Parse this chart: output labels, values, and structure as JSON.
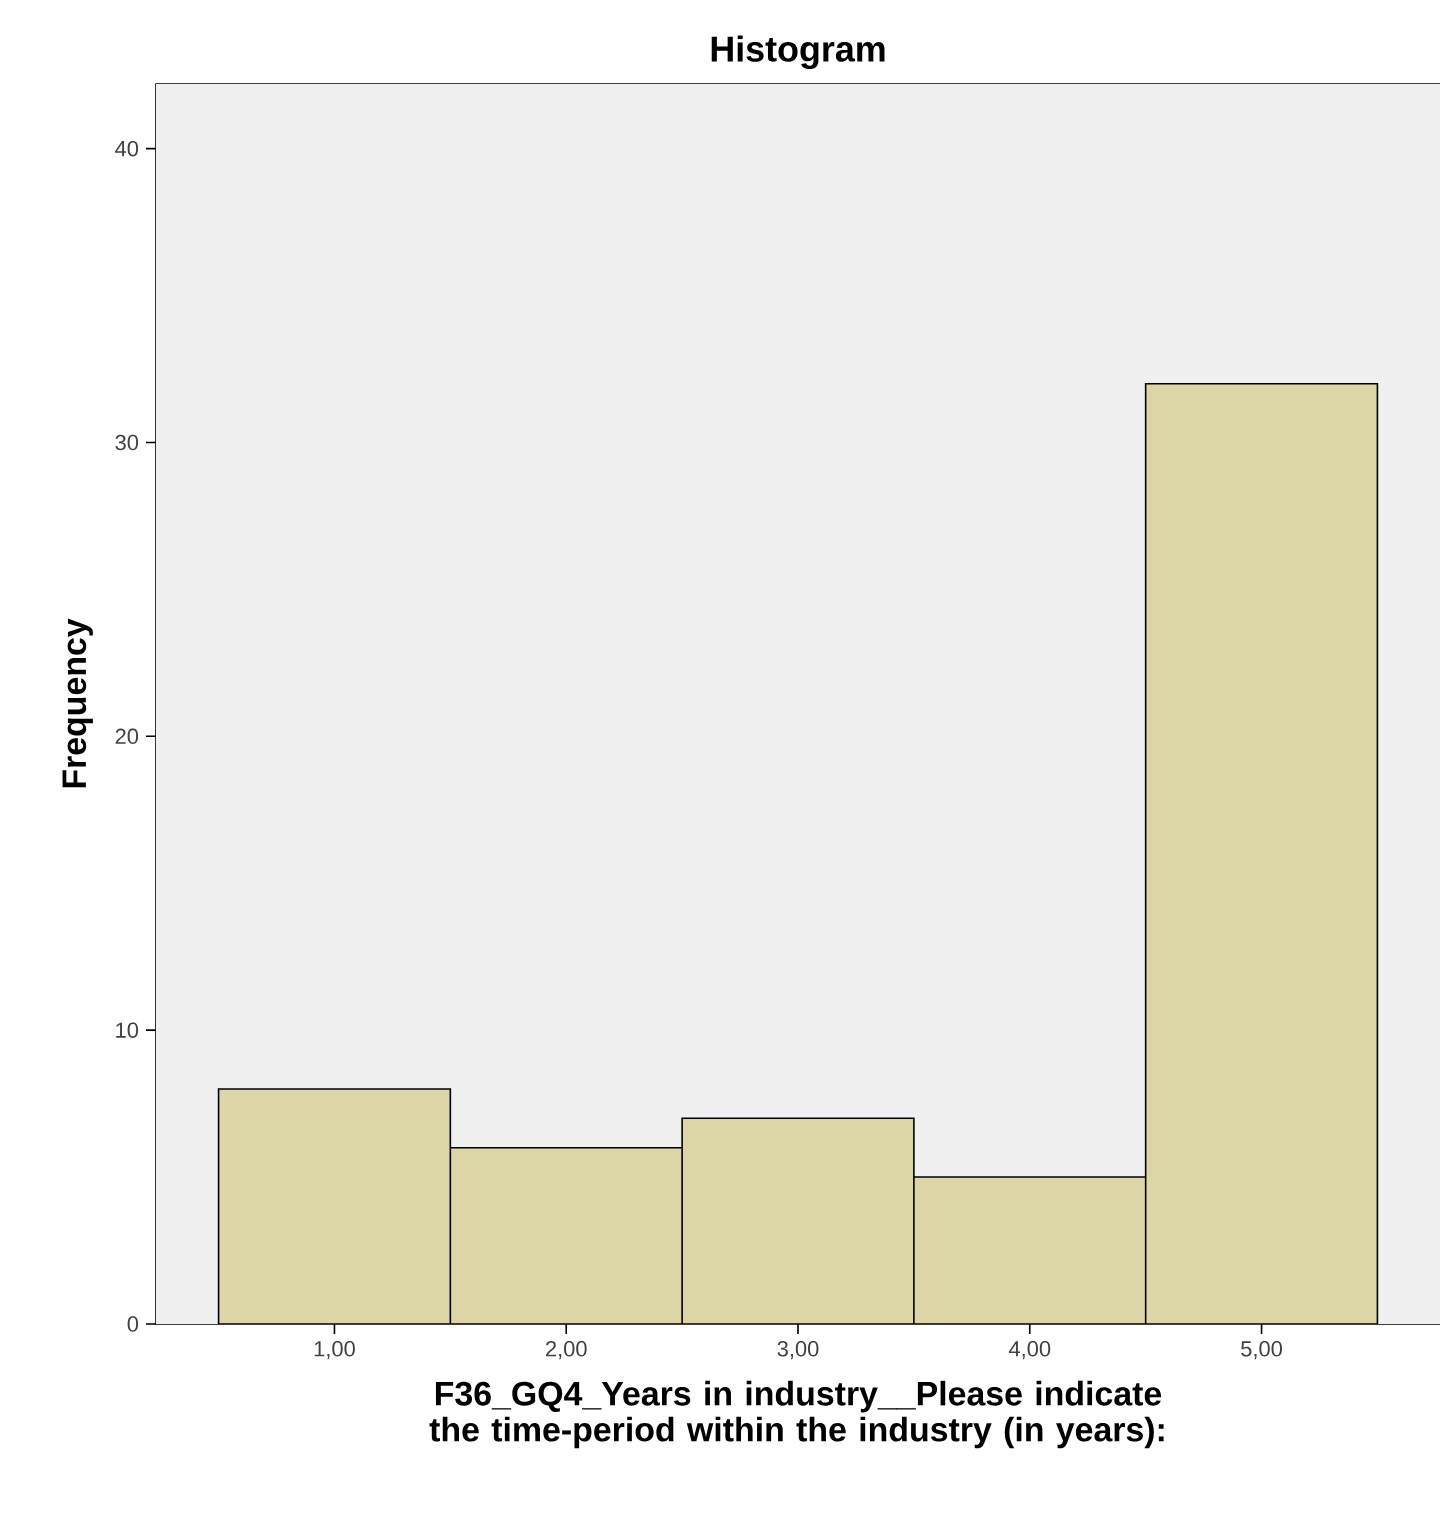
{
  "chart_data": {
    "type": "histogram",
    "title": "Histogram",
    "xlabel": "F36_GQ4_Years in industry__Please indicate the time-period within the industry (in years):",
    "ylabel": "Frequency",
    "bins": [
      0.5,
      1.5,
      2.5,
      3.5,
      4.5,
      5.5
    ],
    "values": [
      8,
      6,
      7,
      5,
      32
    ],
    "color": "#dcd5a5",
    "xlim": [
      0.23,
      5.77
    ],
    "ylim": [
      0,
      42.2
    ],
    "xticks": [
      {
        "value": 1,
        "label": "1,00"
      },
      {
        "value": 2,
        "label": "2,00"
      },
      {
        "value": 3,
        "label": "3,00"
      },
      {
        "value": 4,
        "label": "4,00"
      },
      {
        "value": 5,
        "label": "5,00"
      }
    ],
    "yticks": [
      0,
      10,
      20,
      30,
      40
    ],
    "grid": false
  }
}
